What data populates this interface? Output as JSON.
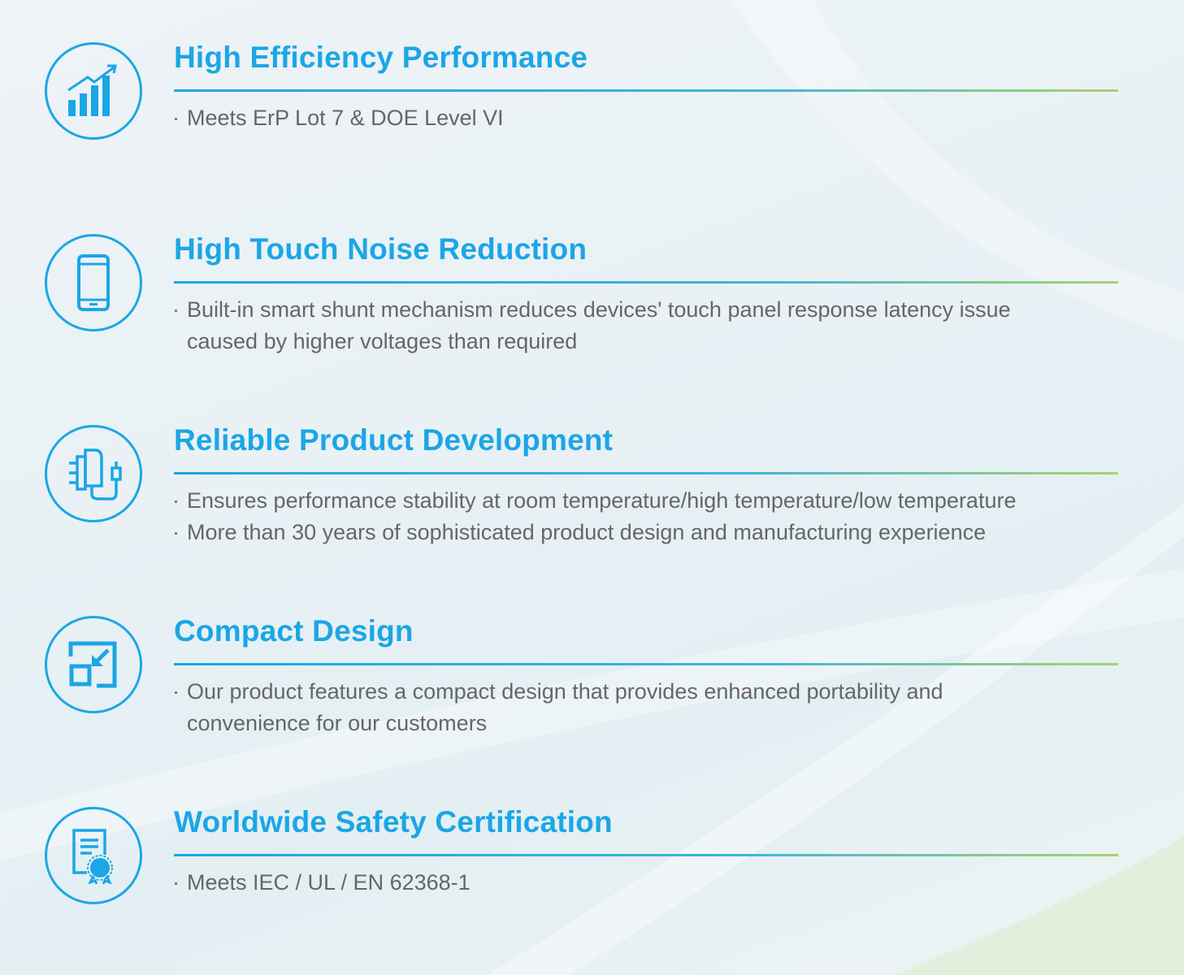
{
  "accent_color": "#1ba6e6",
  "text_color": "#666666",
  "features": [
    {
      "icon": "bar-chart-growth-icon",
      "title": "High Efficiency Performance",
      "bullets": [
        "Meets ErP Lot 7 & DOE Level VI"
      ]
    },
    {
      "icon": "smartphone-icon",
      "title": "High Touch Noise Reduction",
      "bullets": [
        "Built-in smart shunt mechanism reduces devices' touch panel response latency issue",
        "caused by higher voltages than required"
      ]
    },
    {
      "icon": "power-adapter-icon",
      "title": "Reliable Product Development",
      "bullets": [
        "Ensures performance stability at room temperature/high temperature/low temperature",
        "More than 30 years of sophisticated product  design and manufacturing experience"
      ]
    },
    {
      "icon": "compact-resize-icon",
      "title": "Compact Design",
      "bullets": [
        "Our product features a compact design that provides enhanced portability and",
        "convenience for our customers"
      ]
    },
    {
      "icon": "certificate-icon",
      "title": "Worldwide Safety Certification",
      "bullets": [
        "Meets IEC / UL / EN 62368-1"
      ]
    }
  ],
  "bullet_mark": "·"
}
